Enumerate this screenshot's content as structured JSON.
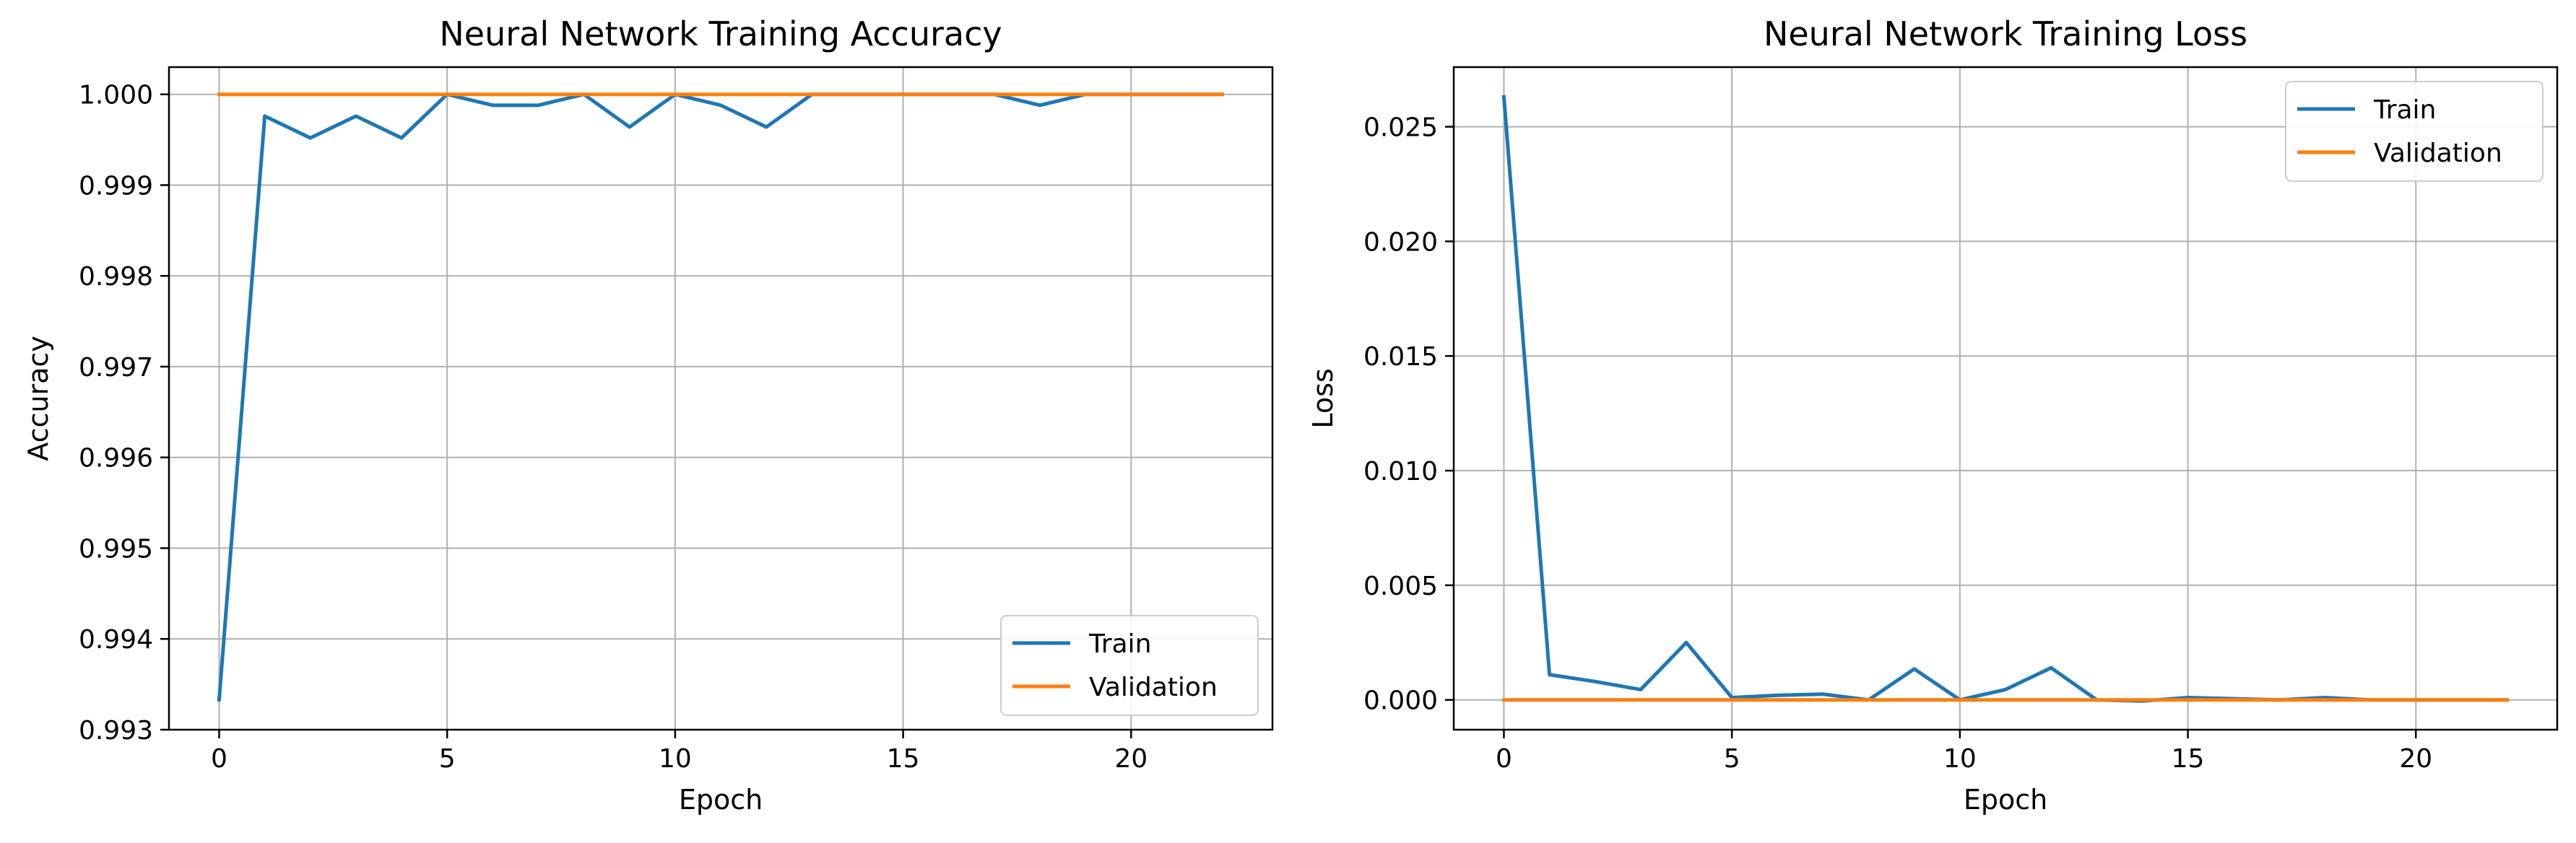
{
  "chart_data": [
    {
      "type": "line",
      "title": "Neural Network Training Accuracy",
      "xlabel": "Epoch",
      "ylabel": "Accuracy",
      "xlim": [
        -1.1,
        23.1
      ],
      "ylim": [
        0.993,
        1.0003
      ],
      "xticks": [
        0,
        5,
        10,
        15,
        20
      ],
      "xtick_labels": [
        "0",
        "5",
        "10",
        "15",
        "20"
      ],
      "yticks": [
        0.993,
        0.994,
        0.995,
        0.996,
        0.997,
        0.998,
        0.999,
        1.0
      ],
      "ytick_labels": [
        "0.993",
        "0.994",
        "0.995",
        "0.996",
        "0.997",
        "0.998",
        "0.999",
        "1.000"
      ],
      "grid": true,
      "legend_position": "lower-right",
      "x": [
        0,
        1,
        2,
        3,
        4,
        5,
        6,
        7,
        8,
        9,
        10,
        11,
        12,
        13,
        14,
        15,
        16,
        17,
        18,
        19,
        20,
        21,
        22
      ],
      "series": [
        {
          "name": "Train",
          "color": "#1f77b4",
          "values": [
            0.99333,
            0.99976,
            0.99952,
            0.99976,
            0.99952,
            1.0,
            0.99988,
            0.99988,
            1.0,
            0.99964,
            1.0,
            0.99988,
            0.99964,
            1.0,
            1.0,
            1.0,
            1.0,
            1.0,
            0.99988,
            1.0,
            1.0,
            1.0,
            1.0
          ]
        },
        {
          "name": "Validation",
          "color": "#ff7f0e",
          "values": [
            1.0,
            1.0,
            1.0,
            1.0,
            1.0,
            1.0,
            1.0,
            1.0,
            1.0,
            1.0,
            1.0,
            1.0,
            1.0,
            1.0,
            1.0,
            1.0,
            1.0,
            1.0,
            1.0,
            1.0,
            1.0,
            1.0,
            1.0
          ]
        }
      ]
    },
    {
      "type": "line",
      "title": "Neural Network Training Loss",
      "xlabel": "Epoch",
      "ylabel": "Loss",
      "xlim": [
        -1.1,
        23.1
      ],
      "ylim": [
        -0.0013,
        0.0276
      ],
      "xticks": [
        0,
        5,
        10,
        15,
        20
      ],
      "xtick_labels": [
        "0",
        "5",
        "10",
        "15",
        "20"
      ],
      "yticks": [
        0.0,
        0.005,
        0.01,
        0.015,
        0.02,
        0.025
      ],
      "ytick_labels": [
        "0.000",
        "0.005",
        "0.010",
        "0.015",
        "0.020",
        "0.025"
      ],
      "grid": true,
      "legend_position": "upper-right",
      "x": [
        0,
        1,
        2,
        3,
        4,
        5,
        6,
        7,
        8,
        9,
        10,
        11,
        12,
        13,
        14,
        15,
        16,
        17,
        18,
        19,
        20,
        21,
        22
      ],
      "series": [
        {
          "name": "Train",
          "color": "#1f77b4",
          "values": [
            0.0263,
            0.0011,
            0.0008,
            0.00045,
            0.0025,
            0.0001,
            0.0002,
            0.00025,
            0.0,
            0.00135,
            0.0,
            0.00045,
            0.0014,
            0.0,
            -5e-05,
            0.0001,
            5e-05,
            0.0,
            0.0001,
            0.0,
            0.0,
            0.0,
            0.0
          ]
        },
        {
          "name": "Validation",
          "color": "#ff7f0e",
          "values": [
            0.0,
            0.0,
            0.0,
            0.0,
            0.0,
            0.0,
            0.0,
            0.0,
            0.0,
            0.0,
            0.0,
            0.0,
            0.0,
            0.0,
            0.0,
            0.0,
            0.0,
            0.0,
            0.0,
            0.0,
            0.0,
            0.0,
            0.0
          ]
        }
      ]
    }
  ]
}
